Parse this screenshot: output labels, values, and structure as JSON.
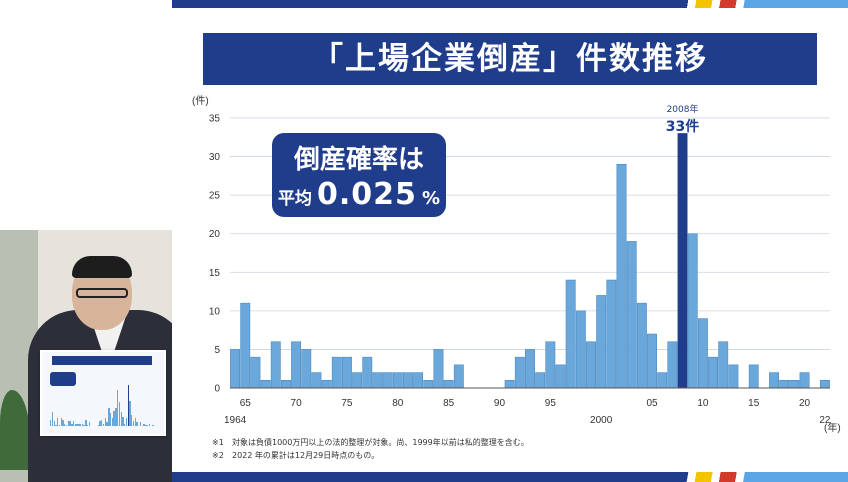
{
  "slide": {
    "title": "「上場企業倒産」件数推移",
    "badge": {
      "line1": "倒産確率は",
      "prefix": "平均",
      "value": "0.025",
      "unit": "%"
    },
    "notes": [
      {
        "mark": "※1",
        "text": "対象は負債1000万円以上の法的整理が対象。尚、1999年以前は私的整理を含む。"
      },
      {
        "mark": "※2",
        "text": "2022 年の累計は12月29日時点のもの。"
      }
    ]
  },
  "colors": {
    "brand_navy": "#1f3d8a",
    "bar": "#6aa8dc",
    "bar_highlight": "#1f3d8a",
    "grid": "#c9d3dd"
  },
  "chart_data": {
    "type": "bar",
    "title": "「上場企業倒産」件数推移",
    "xlabel": "(年)",
    "ylabel": "(件)",
    "ylim": [
      0,
      35
    ],
    "yticks": [
      "0",
      "5",
      "10",
      "15",
      "20",
      "25",
      "30",
      "35"
    ],
    "x_tick_labels": [
      {
        "year": 1965,
        "label": "65"
      },
      {
        "year": 1970,
        "label": "70"
      },
      {
        "year": 1975,
        "label": "75"
      },
      {
        "year": 1980,
        "label": "80"
      },
      {
        "year": 1985,
        "label": "85"
      },
      {
        "year": 1990,
        "label": "90"
      },
      {
        "year": 1995,
        "label": "95"
      },
      {
        "year": 2005,
        "label": "05"
      },
      {
        "year": 2010,
        "label": "10"
      },
      {
        "year": 2015,
        "label": "15"
      },
      {
        "year": 2020,
        "label": "20"
      }
    ],
    "x_sub_labels": [
      {
        "year": 1964,
        "label": "1964"
      },
      {
        "year": 2000,
        "label": "2000"
      },
      {
        "year": 2022,
        "label": "22"
      }
    ],
    "years": [
      1964,
      1965,
      1966,
      1967,
      1968,
      1969,
      1970,
      1971,
      1972,
      1973,
      1974,
      1975,
      1976,
      1977,
      1978,
      1979,
      1980,
      1981,
      1982,
      1983,
      1984,
      1985,
      1986,
      1987,
      1988,
      1989,
      1990,
      1991,
      1992,
      1993,
      1994,
      1995,
      1996,
      1997,
      1998,
      1999,
      2000,
      2001,
      2002,
      2003,
      2004,
      2005,
      2006,
      2007,
      2008,
      2009,
      2010,
      2011,
      2012,
      2013,
      2014,
      2015,
      2016,
      2017,
      2018,
      2019,
      2020,
      2021,
      2022
    ],
    "values": [
      5,
      11,
      4,
      1,
      6,
      1,
      6,
      5,
      2,
      1,
      4,
      4,
      2,
      4,
      2,
      2,
      2,
      2,
      2,
      1,
      5,
      1,
      3,
      0,
      0,
      0,
      0,
      1,
      4,
      5,
      2,
      6,
      3,
      14,
      10,
      6,
      12,
      14,
      29,
      19,
      11,
      7,
      2,
      6,
      33,
      20,
      9,
      4,
      6,
      3,
      0,
      3,
      0,
      2,
      1,
      1,
      2,
      0,
      1
    ],
    "highlight": {
      "year": 2008,
      "year_label": "2008年",
      "value_label": "33件"
    }
  }
}
